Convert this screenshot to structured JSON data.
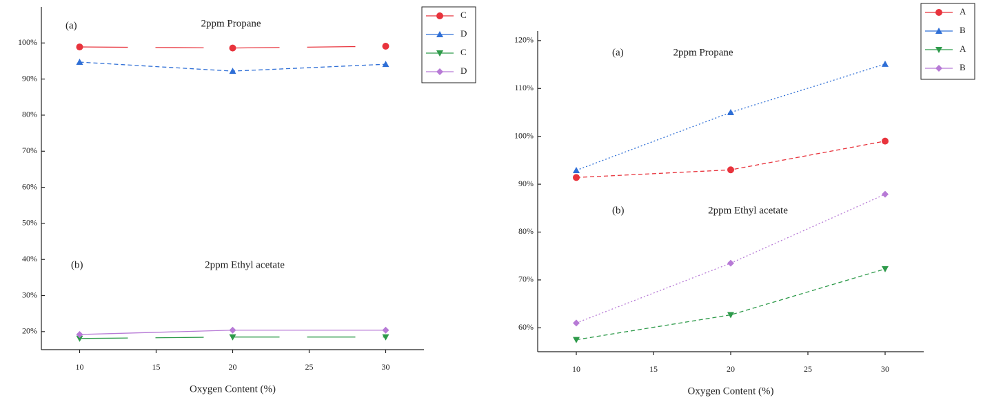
{
  "chart_data": [
    {
      "type": "line",
      "x_label": "Oxygen Content (%)",
      "annotations": [
        "(a)",
        "2ppm Propane",
        "(b)",
        "2ppm Ethyl acetate"
      ],
      "x": [
        10,
        20,
        30
      ],
      "xlim": [
        7.5,
        32.5
      ],
      "xticks": [
        10,
        15,
        20,
        25,
        30
      ],
      "ylim": [
        15,
        110
      ],
      "yticks": [
        {
          "value": 20,
          "label": "20%"
        },
        {
          "value": 30,
          "label": "30%"
        },
        {
          "value": 40,
          "label": "40%"
        },
        {
          "value": 50,
          "label": "50%"
        },
        {
          "value": 60,
          "label": "60%"
        },
        {
          "value": 70,
          "label": "70%"
        },
        {
          "value": 80,
          "label": "80%"
        },
        {
          "value": 90,
          "label": "90%"
        },
        {
          "value": 100,
          "label": "100%"
        }
      ],
      "legend": "upper right outside",
      "series": [
        {
          "name": "C",
          "color": "#e8333c",
          "marker": "circle",
          "linestyle": "longdash",
          "values": [
            98.9,
            98.6,
            99.1
          ]
        },
        {
          "name": "D",
          "color": "#2f6fd6",
          "marker": "triangle",
          "linestyle": "dashed",
          "values": [
            94.7,
            92.2,
            94.1
          ]
        },
        {
          "name": "C",
          "color": "#2e9a4a",
          "marker": "triangle-down",
          "linestyle": "longdash",
          "values": [
            18.1,
            18.5,
            18.5
          ]
        },
        {
          "name": "D",
          "color": "#b77ad6",
          "marker": "diamond",
          "linestyle": "solid",
          "values": [
            19.2,
            20.4,
            20.4
          ]
        }
      ]
    },
    {
      "type": "line",
      "x_label": "Oxygen Content (%)",
      "annotations": [
        "(a)",
        "2ppm Propane",
        "(b)",
        "2ppm Ethyl acetate"
      ],
      "x": [
        10,
        20,
        30
      ],
      "xlim": [
        7.5,
        32.5
      ],
      "xticks": [
        10,
        15,
        20,
        25,
        30
      ],
      "ylim": [
        55,
        122
      ],
      "yticks": [
        {
          "value": 60,
          "label": "60%"
        },
        {
          "value": 70,
          "label": "70%"
        },
        {
          "value": 80,
          "label": "80%"
        },
        {
          "value": 90,
          "label": "90%"
        },
        {
          "value": 100,
          "label": "100%"
        },
        {
          "value": 110,
          "label": "110%"
        },
        {
          "value": 120,
          "label": "120%"
        }
      ],
      "legend": "upper right outside",
      "series": [
        {
          "name": "A",
          "color": "#e8333c",
          "marker": "circle",
          "linestyle": "dashed",
          "values": [
            91.4,
            93.0,
            99.0
          ]
        },
        {
          "name": "B",
          "color": "#2f6fd6",
          "marker": "triangle",
          "linestyle": "dotted",
          "values": [
            92.9,
            105.0,
            115.1
          ]
        },
        {
          "name": "A",
          "color": "#2e9a4a",
          "marker": "triangle-down",
          "linestyle": "dashed",
          "values": [
            57.5,
            62.7,
            72.3
          ]
        },
        {
          "name": "B",
          "color": "#b77ad6",
          "marker": "diamond",
          "linestyle": "dotted",
          "values": [
            61.0,
            73.5,
            87.9
          ]
        }
      ]
    }
  ]
}
